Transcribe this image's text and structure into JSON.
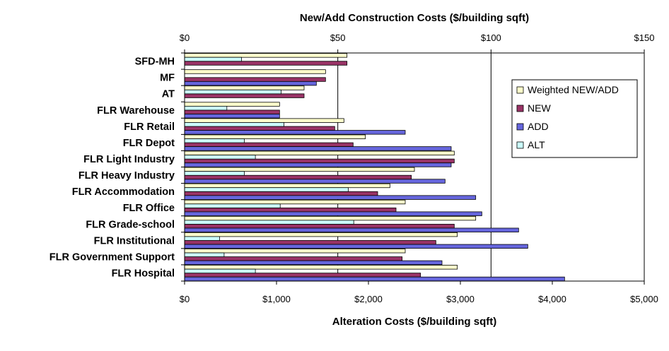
{
  "chart_data": {
    "type": "bar",
    "orientation": "horizontal",
    "title_top": "New/Add Construction Costs ($/building sqft)",
    "xlabel": "Alteration Costs ($/building sqft)",
    "top_axis": {
      "ticks": [
        "$0",
        "$50",
        "$100",
        "$150"
      ],
      "range": [
        0,
        150
      ]
    },
    "bottom_axis": {
      "ticks": [
        "$0",
        "$1,000",
        "$2,000",
        "$3,000",
        "$4,000",
        "$5,000"
      ],
      "range": [
        0,
        5000
      ]
    },
    "categories": [
      "SFD-MH",
      "MF",
      "AT",
      "FLR Warehouse",
      "FLR Retail",
      "FLR Depot",
      "FLR Light Industry",
      "FLR Heavy Industry",
      "FLR Accommodation",
      "FLR Office",
      "FLR Grade-school",
      "FLR Institutional",
      "FLR Government Support",
      "FLR Hospital"
    ],
    "series": [
      {
        "name": "Weighted NEW/ADD",
        "axis": "top",
        "color": "#ffffcc",
        "values": [
          53,
          46,
          39,
          31,
          52,
          59,
          88,
          75,
          67,
          72,
          95,
          89,
          72,
          89
        ]
      },
      {
        "name": "NEW",
        "axis": "top",
        "color": "#993366",
        "values": [
          53,
          46,
          39,
          31,
          49,
          55,
          88,
          74,
          63,
          69,
          88,
          82,
          71,
          77
        ]
      },
      {
        "name": "ADD",
        "axis": "top",
        "color": "#6666dd",
        "values": [
          null,
          43,
          null,
          31,
          72,
          87,
          87,
          85,
          95,
          97,
          109,
          112,
          84,
          124
        ]
      },
      {
        "name": "ALT",
        "axis": "bottom",
        "color": "#ccffff",
        "values": [
          620,
          null,
          1050,
          460,
          1080,
          650,
          770,
          650,
          1780,
          1040,
          1840,
          380,
          430,
          770
        ]
      }
    ],
    "legend_order": [
      "Weighted NEW/ADD",
      "NEW",
      "ADD",
      "ALT"
    ],
    "legend_position": "right",
    "gridlines": "vertical"
  }
}
